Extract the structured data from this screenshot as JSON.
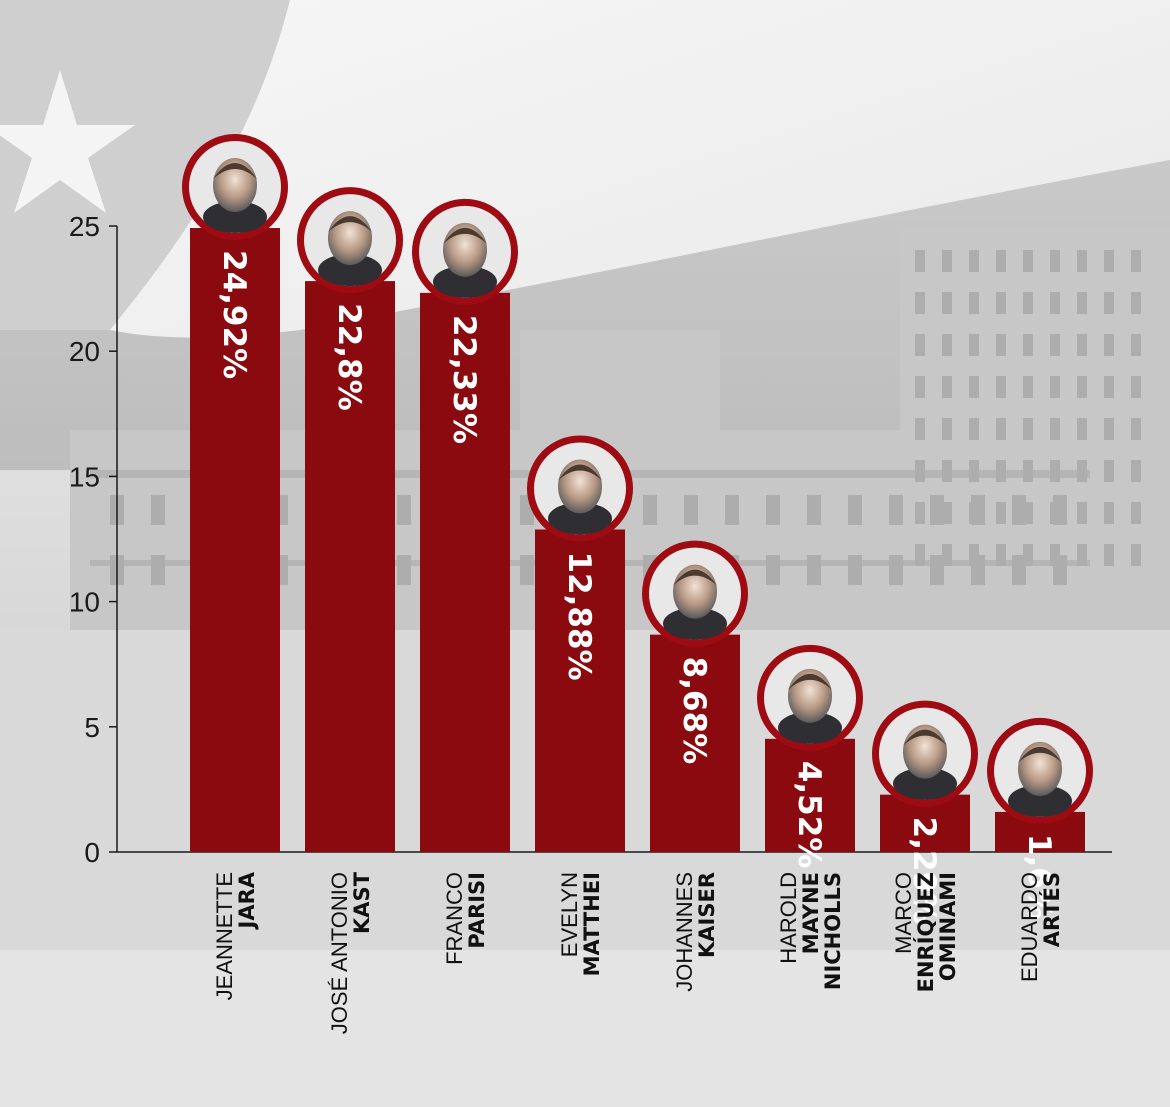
{
  "colors": {
    "bar": "#8b0a0f",
    "avatar_ring": "#9e0b12",
    "axis": "#1a1a1a",
    "label_text": "#ffffff"
  },
  "chart_data": {
    "type": "bar",
    "title": "",
    "xlabel": "",
    "ylabel": "",
    "ylim": [
      0,
      25
    ],
    "yticks": [
      0,
      5,
      10,
      15,
      20,
      25
    ],
    "ytick_labels": [
      "0",
      "5",
      "10",
      "15",
      "20",
      "25"
    ],
    "grid": false,
    "categories": [
      {
        "first": "JEANNETTE",
        "last": [
          "JARA"
        ]
      },
      {
        "first": "JOSÉ ANTONIO",
        "last": [
          "KAST"
        ]
      },
      {
        "first": "FRANCO",
        "last": [
          "PARISI"
        ]
      },
      {
        "first": "EVELYN",
        "last": [
          "MATTHEI"
        ]
      },
      {
        "first": "JOHANNES",
        "last": [
          "KAISER"
        ]
      },
      {
        "first": "HAROLD",
        "last": [
          "MAYNE",
          "NICHOLLS"
        ]
      },
      {
        "first": "MARCO",
        "last": [
          "ENRÍQUEZ",
          "OMINAMI"
        ]
      },
      {
        "first": "EDUARDO",
        "last": [
          "ARTÉS"
        ]
      }
    ],
    "values": [
      24.92,
      22.8,
      22.33,
      12.88,
      8.68,
      4.52,
      2.29,
      1.6
    ],
    "value_labels": [
      "24,92%",
      "22,8%",
      "22,33%",
      "12,88%",
      "8,68%",
      "4,52%",
      "2,29%",
      "1,6%"
    ],
    "markers": "candidate-photo-avatar"
  }
}
